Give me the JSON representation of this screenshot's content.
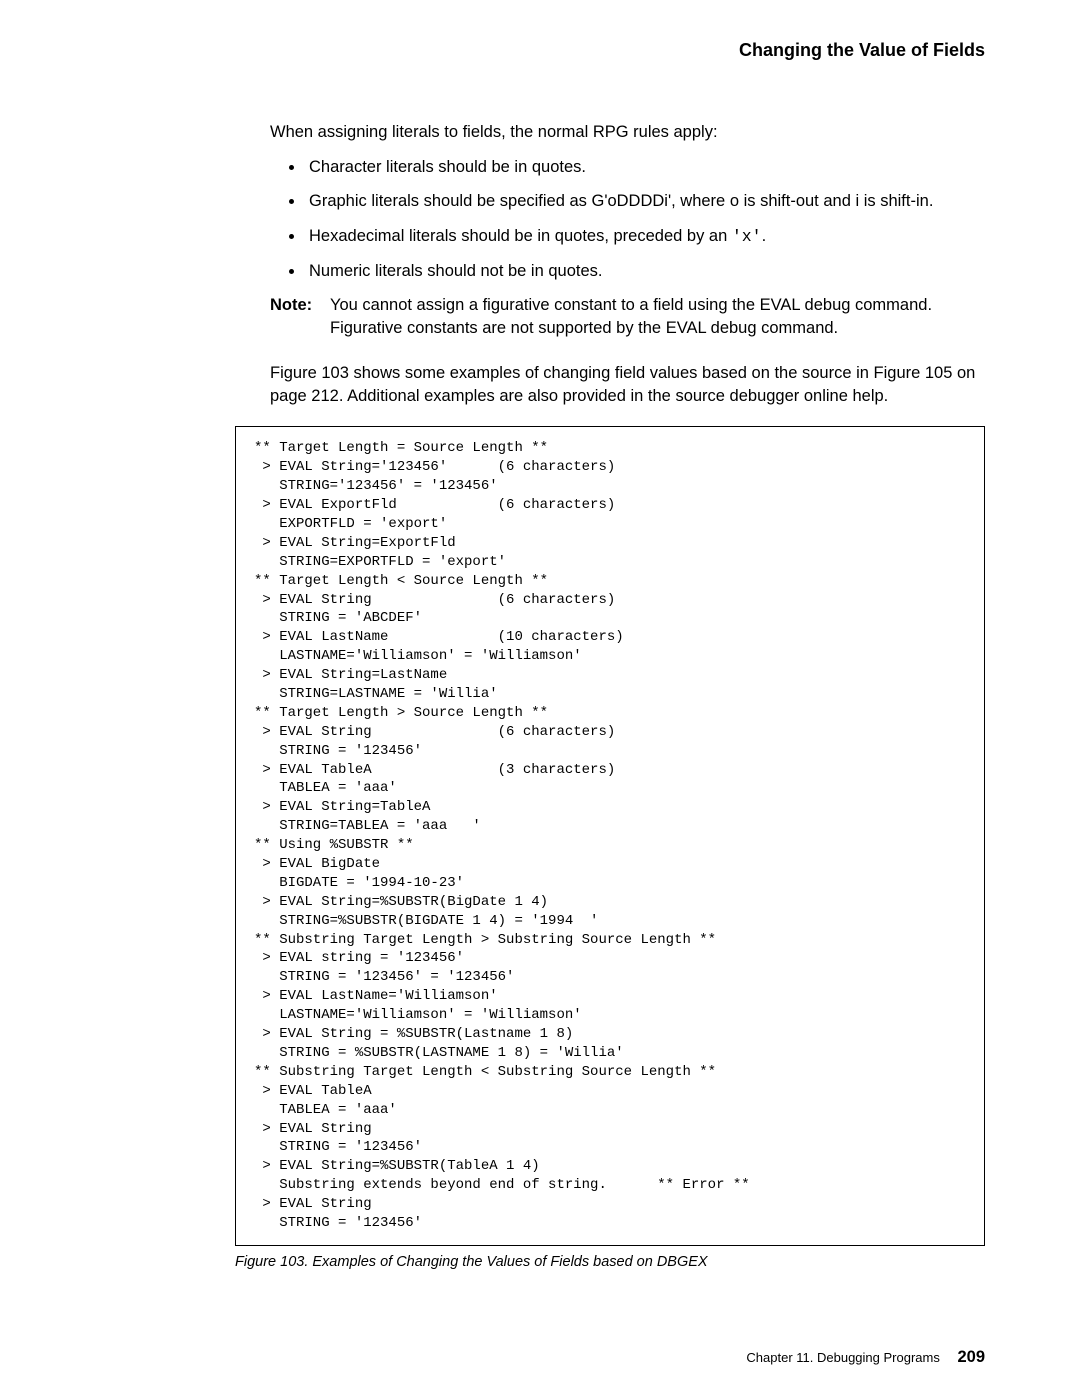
{
  "header": {
    "title": "Changing the Value of Fields"
  },
  "intro": "When assigning literals to fields, the normal RPG rules apply:",
  "rules": [
    "Character literals should be in quotes.",
    "Graphic literals should be specified as G'oDDDDi', where o is shift-out and i is shift-in.",
    "Hexadecimal literals should be in quotes, preceded by an ",
    "Numeric literals should not be in quotes."
  ],
  "hex_suffix_code": "'x'",
  "hex_suffix_tail": ".",
  "note": {
    "label": "Note:",
    "text": "You cannot assign a figurative constant to a field using the EVAL debug command. Figurative constants are not supported by the EVAL debug command."
  },
  "para": "Figure 103 shows some examples of changing field values based on the source in Figure 105 on page 212. Additional examples are also provided in the source debugger online help.",
  "code": "** Target Length = Source Length **\n > EVAL String='123456'      (6 characters)\n   STRING='123456' = '123456'\n > EVAL ExportFld            (6 characters)\n   EXPORTFLD = 'export'\n > EVAL String=ExportFld\n   STRING=EXPORTFLD = 'export'\n** Target Length < Source Length **\n > EVAL String               (6 characters)\n   STRING = 'ABCDEF'\n > EVAL LastName             (10 characters)\n   LASTNAME='Williamson' = 'Williamson'\n > EVAL String=LastName\n   STRING=LASTNAME = 'Willia'\n** Target Length > Source Length **\n > EVAL String               (6 characters)\n   STRING = '123456'\n > EVAL TableA               (3 characters)\n   TABLEA = 'aaa'\n > EVAL String=TableA\n   STRING=TABLEA = 'aaa   '\n** Using %SUBSTR **\n > EVAL BigDate\n   BIGDATE = '1994-10-23'\n > EVAL String=%SUBSTR(BigDate 1 4)\n   STRING=%SUBSTR(BIGDATE 1 4) = '1994  '\n** Substring Target Length > Substring Source Length **\n > EVAL string = '123456'\n   STRING = '123456' = '123456'\n > EVAL LastName='Williamson'\n   LASTNAME='Williamson' = 'Williamson'\n > EVAL String = %SUBSTR(Lastname 1 8)\n   STRING = %SUBSTR(LASTNAME 1 8) = 'Willia'\n** Substring Target Length < Substring Source Length **\n > EVAL TableA\n   TABLEA = 'aaa'\n > EVAL String\n   STRING = '123456'\n > EVAL String=%SUBSTR(TableA 1 4)\n   Substring extends beyond end of string.      ** Error **\n > EVAL String\n   STRING = '123456'",
  "figure_caption": "Figure 103. Examples of Changing the Values of Fields based on DBGEX",
  "footer": {
    "chapter": "Chapter 11. Debugging Programs",
    "page": "209"
  }
}
